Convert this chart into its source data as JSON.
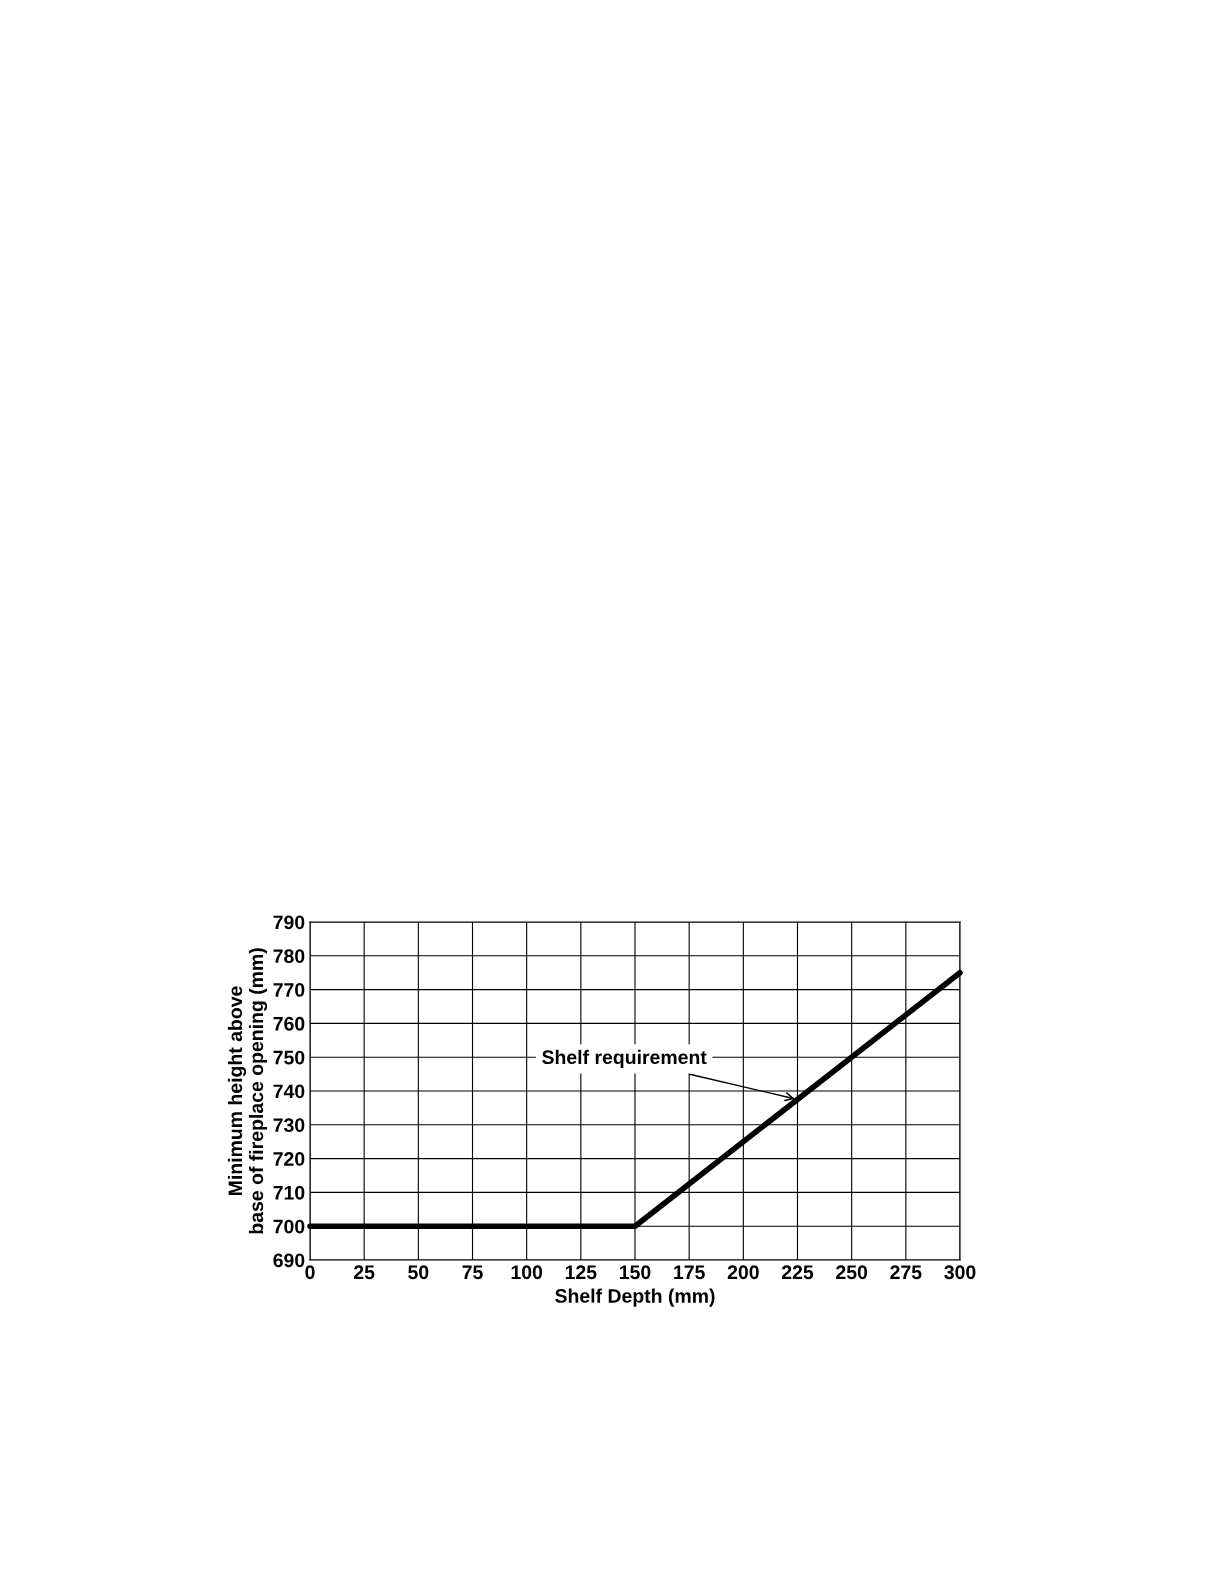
{
  "chart_data": {
    "type": "line",
    "xlabel": "Shelf Depth (mm)",
    "ylabel": "Minimum height above\nbase of fireplace opening (mm)",
    "x": [
      0,
      150,
      300
    ],
    "series": [
      {
        "color": "#000000",
        "values": [
          700,
          700,
          775
        ]
      }
    ],
    "xlim": [
      0,
      300
    ],
    "xticks": [
      0,
      25,
      50,
      75,
      100,
      125,
      150,
      175,
      200,
      225,
      250,
      275,
      300
    ],
    "ylim": [
      690,
      790
    ],
    "yticks": [
      690,
      700,
      710,
      720,
      730,
      740,
      750,
      760,
      770,
      780,
      790
    ],
    "grid": true,
    "marker": "none",
    "line_style": "solid",
    "annotations": [
      {
        "text": "Shelf requirement",
        "x": 225,
        "y": 737.5
      }
    ]
  }
}
